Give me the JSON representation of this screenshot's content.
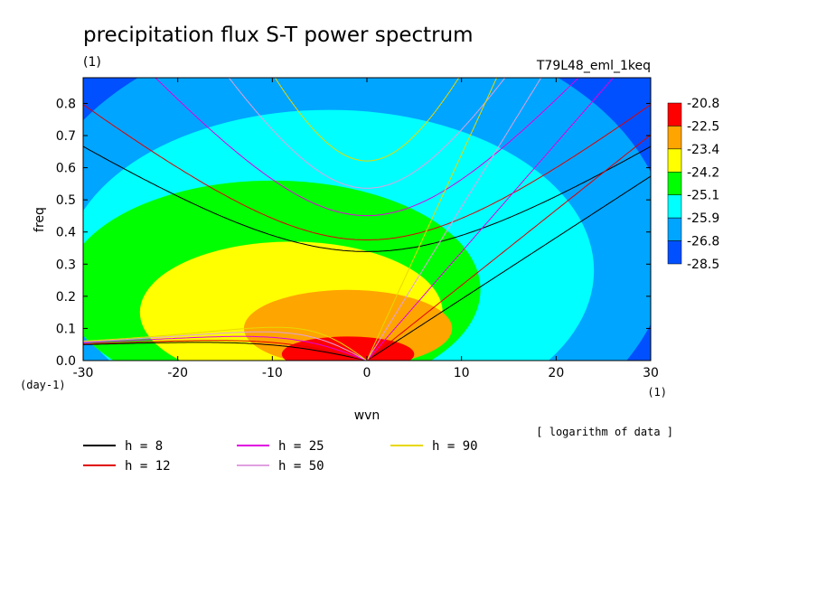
{
  "chart_data": {
    "type": "heatmap",
    "title": "precipitation flux S-T power spectrum",
    "title_units": "(1)",
    "run_label": "T79L48_eml_1keq",
    "xlabel": "wvn",
    "x_units": "(1)",
    "ylabel": "freq",
    "y_units": "(day-1)",
    "note": "[ logarithm of data ]",
    "xlim": [
      -30,
      30
    ],
    "ylim": [
      0,
      0.88
    ],
    "x_ticks": [
      -30,
      -20,
      -10,
      0,
      10,
      20,
      30
    ],
    "x_tick_labels": [
      "-30",
      "-20",
      "-10",
      "0",
      "10",
      "20",
      "30"
    ],
    "y_ticks": [
      0.0,
      0.1,
      0.2,
      0.3,
      0.4,
      0.5,
      0.6,
      0.7,
      0.8
    ],
    "y_tick_labels": [
      "0.0",
      "0.1",
      "0.2",
      "0.3",
      "0.4",
      "0.5",
      "0.6",
      "0.7",
      "0.8"
    ],
    "colorbar": {
      "levels": [
        -20.8,
        -22.5,
        -23.4,
        -24.2,
        -25.1,
        -25.9,
        -26.8,
        -28.5
      ],
      "labels": [
        "-20.8",
        "-22.5",
        "-23.4",
        "-24.2",
        "-25.1",
        "-25.9",
        "-26.8",
        "-28.5"
      ],
      "colors": [
        "#ff0000",
        "#ffa500",
        "#ffff00",
        "#00ff00",
        "#00ffff",
        "#00a5ff",
        "#0050ff"
      ]
    },
    "field_model": {
      "background_level": 6,
      "band_centers": [
        {
          "x": -2,
          "y": 0.02,
          "sx": 7,
          "sy": 0.055,
          "level": 0
        },
        {
          "x": -2,
          "y": 0.1,
          "sx": 11,
          "sy": 0.12,
          "level": 1
        },
        {
          "x": -8,
          "y": 0.15,
          "sx": 16,
          "sy": 0.22,
          "level": 2
        },
        {
          "x": -10,
          "y": 0.22,
          "sx": 22,
          "sy": 0.34,
          "level": 3
        },
        {
          "x": -4,
          "y": 0.28,
          "sx": 28,
          "sy": 0.5,
          "level": 4
        },
        {
          "x": -2,
          "y": 0.35,
          "sx": 34,
          "sy": 0.7,
          "level": 5
        }
      ]
    },
    "dispersion_curves": {
      "legend": [
        {
          "label": "h =  8",
          "h": 8,
          "color": "#000000"
        },
        {
          "label": "h = 12",
          "h": 12,
          "color": "#e00000"
        },
        {
          "label": "h = 25",
          "h": 25,
          "color": "#e000e0"
        },
        {
          "label": "h = 50",
          "h": 50,
          "color": "#e0a0e0"
        },
        {
          "label": "h = 90",
          "h": 90,
          "color": "#e8d800"
        }
      ]
    }
  }
}
